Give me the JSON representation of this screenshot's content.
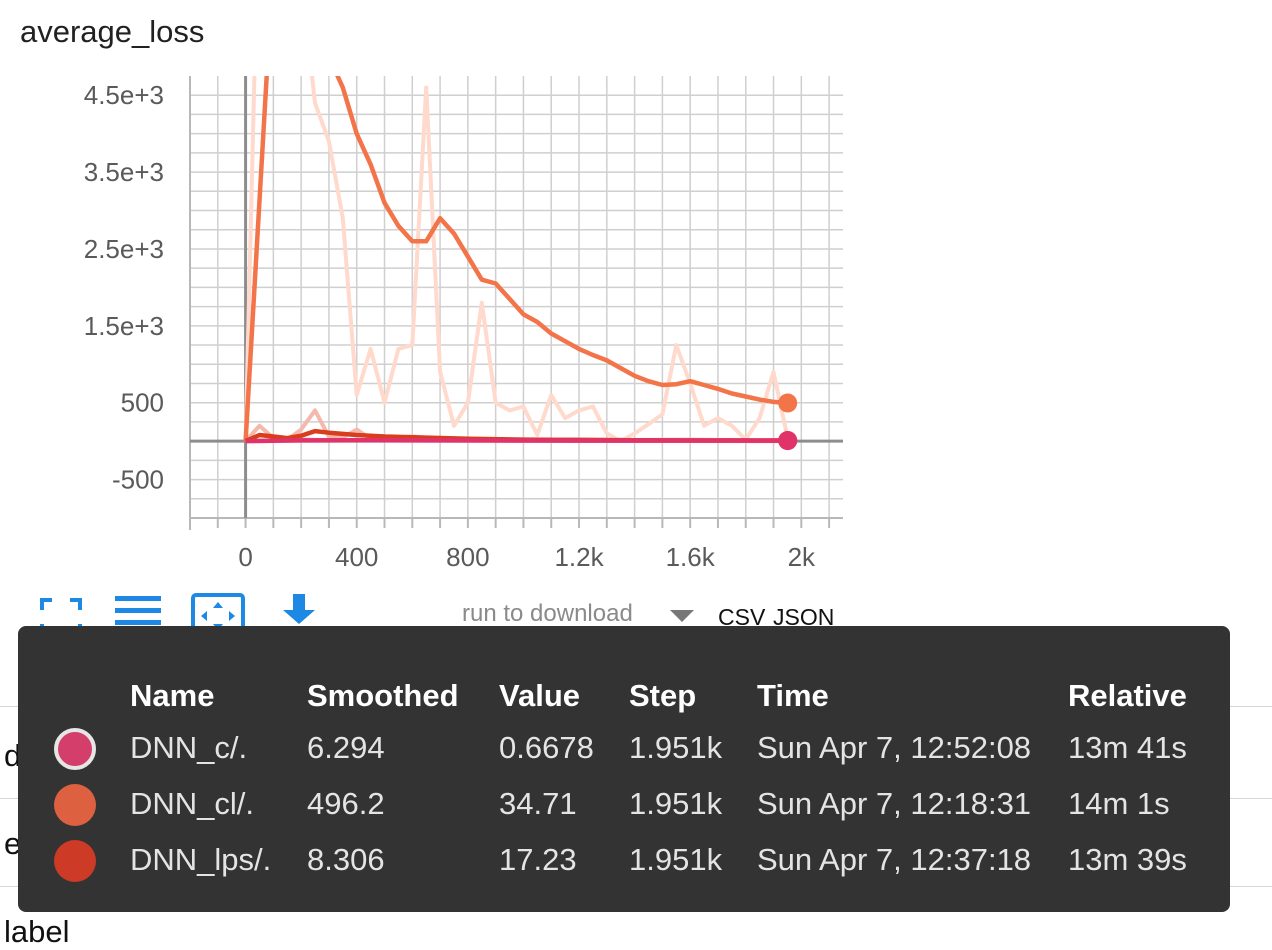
{
  "chart_title": "average_loss",
  "chart_data": {
    "type": "line",
    "title": "average_loss",
    "xlim": [
      -200,
      2150
    ],
    "ylim": [
      -1000,
      4750
    ],
    "x_ticks": [
      0,
      400,
      800,
      1200,
      1600,
      2000
    ],
    "x_tick_labels": [
      "0",
      "400",
      "800",
      "1.2k",
      "1.6k",
      "2k"
    ],
    "y_ticks": [
      -500,
      500,
      1500,
      2500,
      3500,
      4500
    ],
    "y_tick_labels": [
      "-500",
      "500",
      "1.5e+3",
      "2.5e+3",
      "3.5e+3",
      "4.5e+3"
    ],
    "grid": true,
    "series": [
      {
        "name": "DNN_cl/.",
        "color": "#f4744a",
        "raw_color": "#ffd9cc",
        "smoothed": {
          "x": [
            0,
            80,
            200,
            300,
            350,
            400,
            450,
            500,
            550,
            600,
            650,
            700,
            750,
            800,
            850,
            900,
            950,
            1000,
            1050,
            1100,
            1150,
            1200,
            1250,
            1300,
            1350,
            1400,
            1450,
            1500,
            1550,
            1600,
            1650,
            1700,
            1750,
            1800,
            1850,
            1900,
            1951
          ],
          "y": [
            0,
            5000,
            7000,
            5000,
            4600,
            4000,
            3600,
            3100,
            2800,
            2600,
            2600,
            2900,
            2700,
            2400,
            2100,
            2050,
            1850,
            1650,
            1550,
            1400,
            1300,
            1200,
            1120,
            1050,
            950,
            850,
            780,
            730,
            740,
            780,
            730,
            680,
            620,
            580,
            540,
            510,
            496.2
          ]
        },
        "raw": {
          "x": [
            0,
            80,
            130,
            200,
            250,
            300,
            350,
            400,
            450,
            500,
            550,
            600,
            650,
            700,
            750,
            800,
            850,
            900,
            950,
            1000,
            1050,
            1100,
            1150,
            1200,
            1250,
            1300,
            1350,
            1400,
            1450,
            1500,
            1550,
            1600,
            1650,
            1700,
            1750,
            1800,
            1850,
            1900,
            1951
          ],
          "y": [
            0,
            12000,
            9000,
            6000,
            4400,
            3900,
            2900,
            600,
            1200,
            500,
            1200,
            1250,
            4600,
            900,
            200,
            500,
            1800,
            500,
            400,
            450,
            80,
            600,
            300,
            400,
            450,
            100,
            0,
            100,
            220,
            350,
            1250,
            750,
            200,
            300,
            200,
            20,
            300,
            900,
            35
          ]
        }
      },
      {
        "name": "DNN_lps/.",
        "color": "#d93d1e",
        "raw_color": "#f4b8ac",
        "smoothed": {
          "x": [
            0,
            50,
            100,
            150,
            200,
            250,
            300,
            400,
            500,
            600,
            800,
            1000,
            1200,
            1400,
            1600,
            1800,
            1951
          ],
          "y": [
            0,
            80,
            60,
            40,
            70,
            130,
            110,
            80,
            60,
            50,
            30,
            20,
            15,
            12,
            10,
            9,
            8.3
          ]
        },
        "raw": {
          "x": [
            0,
            50,
            100,
            150,
            200,
            250,
            300,
            350,
            400,
            450,
            500,
            600,
            700,
            800,
            900,
            1000,
            1200,
            1400,
            1600,
            1800,
            1951
          ],
          "y": [
            0,
            200,
            40,
            20,
            150,
            400,
            60,
            50,
            150,
            30,
            40,
            60,
            30,
            25,
            20,
            15,
            25,
            15,
            20,
            10,
            17
          ]
        }
      },
      {
        "name": "DNN_c/.",
        "color": "#e0336a",
        "raw_color": "#f0a3bb",
        "smoothed": {
          "x": [
            0,
            200,
            400,
            800,
            1200,
            1600,
            1951
          ],
          "y": [
            0,
            10,
            12,
            9,
            7,
            6.5,
            6.3
          ]
        },
        "raw": {
          "x": [
            0,
            200,
            400,
            800,
            1200,
            1600,
            1951
          ],
          "y": [
            0,
            20,
            10,
            5,
            3,
            2,
            0.7
          ]
        }
      }
    ]
  },
  "toolbar": {
    "icons": [
      "fullscreen-icon",
      "toggle-log-scale-icon",
      "fit-domain-icon",
      "download-icon"
    ],
    "accent": "#1e88e5",
    "run_select_label": "run to download",
    "csv_label": "CSV",
    "json_label": "JSON"
  },
  "background_rows": [
    {
      "label": "dnn"
    },
    {
      "label": "enqueue_input"
    },
    {
      "label": "label"
    }
  ],
  "tooltip": {
    "headers": {
      "name": "Name",
      "smoothed": "Smoothed",
      "value": "Value",
      "step": "Step",
      "time": "Time",
      "relative": "Relative"
    },
    "rows": [
      {
        "color": "#d33f6a",
        "name": "DNN_c/.",
        "smoothed": "6.294",
        "value": "0.6678",
        "step": "1.951k",
        "time": "Sun Apr 7, 12:52:08",
        "relative": "13m 41s",
        "highlighted": true
      },
      {
        "color": "#dd6141",
        "name": "DNN_cl/.",
        "smoothed": "496.2",
        "value": "34.71",
        "step": "1.951k",
        "time": "Sun Apr 7, 12:18:31",
        "relative": "14m 1s",
        "highlighted": false
      },
      {
        "color": "#cd3a26",
        "name": "DNN_lps/.",
        "smoothed": "8.306",
        "value": "17.23",
        "step": "1.951k",
        "time": "Sun Apr 7, 12:37:18",
        "relative": "13m 39s",
        "highlighted": false
      }
    ]
  }
}
